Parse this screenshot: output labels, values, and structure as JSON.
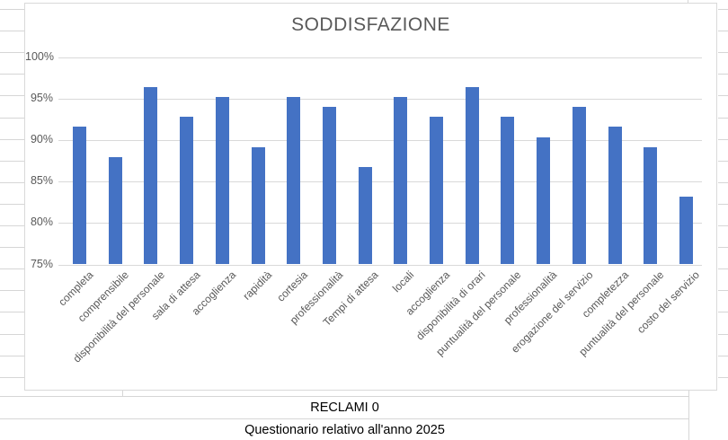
{
  "chart_data": {
    "type": "bar",
    "title": "SODDISFAZIONE",
    "categories": [
      "completa",
      "comprensibile",
      "disponibilità del personale",
      "sala di attesa",
      "accoglienza",
      "rapidità",
      "cortesia",
      "professionalità",
      "Tempi di attesa",
      "locali",
      "accoglienza",
      "disponibilità di orari",
      "puntualità del personale",
      "professionalità",
      "erogazione del servizio",
      "completezza",
      "puntualità del personale",
      "costo del servizio"
    ],
    "values": [
      91.6,
      88,
      96.4,
      92.8,
      95.2,
      89.2,
      95.2,
      94,
      86.8,
      95.2,
      92.8,
      96.4,
      92.8,
      90.4,
      94,
      91.6,
      89.2,
      83.2
    ],
    "xlabel": "",
    "ylabel": "",
    "ylim": [
      75,
      100
    ],
    "yticks": [
      {
        "value": 75,
        "label": "75%"
      },
      {
        "value": 80,
        "label": "80%"
      },
      {
        "value": 85,
        "label": "85%"
      },
      {
        "value": 90,
        "label": "90%"
      },
      {
        "value": 95,
        "label": "95%"
      },
      {
        "value": 100,
        "label": "100%"
      }
    ],
    "grid": true,
    "legend": false,
    "bar_color": "#4472C4",
    "gridline_color": "#D9D9D9",
    "text_color": "#595959"
  },
  "sheet": {
    "row_reclami": "RECLAMI 0",
    "row_questionario": "Questionario relativo all'anno 2025"
  }
}
